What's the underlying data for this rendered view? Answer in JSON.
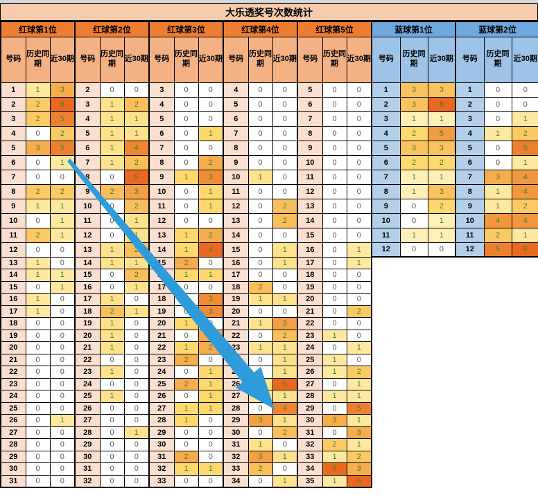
{
  "title": "大乐透奖号次数统计",
  "col_headers": {
    "number": "号码",
    "history": "历史同期",
    "recent30": "近30期"
  },
  "palette": {
    "title_bg": "#F8CBAD",
    "red_group_header_bg": "#ED7D31",
    "red_col_header_bg": "#F4B183",
    "red_number_bg": "#FBDFD0",
    "blue_group_header_bg": "#6FA8DC",
    "blue_col_header_bg": "#9DC3E6",
    "blue_number_bg": "#B4CFEA",
    "zero_text": "#595959",
    "value_text": "#4F7A28",
    "heat_min": "#FFFFFF",
    "heat_max": "#E8691F",
    "arrow_color": "#2E9BDA"
  },
  "groups": [
    {
      "label": "红球第1位",
      "type": "red",
      "start": 1,
      "rows": [
        [
          1,
          3
        ],
        [
          2,
          6
        ],
        [
          2,
          5
        ],
        [
          0,
          2
        ],
        [
          3,
          5
        ],
        [
          0,
          1
        ],
        [
          0,
          0
        ],
        [
          2,
          2
        ],
        [
          1,
          1
        ],
        [
          0,
          1
        ],
        [
          2,
          1
        ],
        [
          0,
          0
        ],
        [
          1,
          0
        ],
        [
          1,
          1
        ],
        [
          0,
          1
        ],
        [
          1,
          0
        ],
        [
          1,
          0
        ],
        [
          0,
          0
        ],
        [
          0,
          0
        ],
        [
          0,
          0
        ],
        [
          0,
          0
        ],
        [
          0,
          0
        ],
        [
          0,
          0
        ],
        [
          0,
          0
        ],
        [
          0,
          0
        ],
        [
          0,
          1
        ],
        [
          0,
          0
        ],
        [
          0,
          0
        ],
        [
          0,
          0
        ],
        [
          0,
          0
        ],
        [
          0,
          0
        ]
      ]
    },
    {
      "label": "红球第2位",
      "type": "red",
      "start": 2,
      "rows": [
        [
          0,
          0
        ],
        [
          1,
          2
        ],
        [
          1,
          1
        ],
        [
          1,
          1
        ],
        [
          1,
          4
        ],
        [
          1,
          2
        ],
        [
          0,
          5
        ],
        [
          2,
          3
        ],
        [
          0,
          2
        ],
        [
          0,
          1
        ],
        [
          0,
          1
        ],
        [
          1,
          2
        ],
        [
          1,
          1
        ],
        [
          0,
          2
        ],
        [
          0,
          1
        ],
        [
          1,
          0
        ],
        [
          2,
          1
        ],
        [
          1,
          0
        ],
        [
          1,
          0
        ],
        [
          1,
          0
        ],
        [
          0,
          0
        ],
        [
          1,
          0
        ],
        [
          0,
          0
        ],
        [
          1,
          0
        ],
        [
          0,
          0
        ],
        [
          0,
          0
        ],
        [
          0,
          1
        ],
        [
          0,
          0
        ],
        [
          0,
          0
        ],
        [
          0,
          0
        ],
        [
          0,
          0
        ]
      ]
    },
    {
      "label": "红球第3位",
      "type": "red",
      "start": 3,
      "rows": [
        [
          0,
          0
        ],
        [
          0,
          0
        ],
        [
          0,
          0
        ],
        [
          0,
          1
        ],
        [
          0,
          0
        ],
        [
          0,
          2
        ],
        [
          1,
          3
        ],
        [
          0,
          1
        ],
        [
          0,
          1
        ],
        [
          0,
          0
        ],
        [
          1,
          2
        ],
        [
          1,
          4
        ],
        [
          2,
          0
        ],
        [
          1,
          1
        ],
        [
          0,
          0
        ],
        [
          0,
          3
        ],
        [
          0,
          3
        ],
        [
          1,
          0
        ],
        [
          0,
          2
        ],
        [
          1,
          2
        ],
        [
          2,
          0
        ],
        [
          0,
          1
        ],
        [
          2,
          1
        ],
        [
          0,
          1
        ],
        [
          1,
          1
        ],
        [
          1,
          0
        ],
        [
          0,
          0
        ],
        [
          0,
          0
        ],
        [
          2,
          0
        ],
        [
          1,
          1
        ],
        [
          0,
          0
        ]
      ]
    },
    {
      "label": "红球第4位",
      "type": "red",
      "start": 4,
      "rows": [
        [
          0,
          0
        ],
        [
          0,
          0
        ],
        [
          0,
          0
        ],
        [
          0,
          0
        ],
        [
          0,
          0
        ],
        [
          0,
          0
        ],
        [
          1,
          0
        ],
        [
          0,
          0
        ],
        [
          0,
          2
        ],
        [
          0,
          2
        ],
        [
          0,
          0
        ],
        [
          0,
          1
        ],
        [
          0,
          1
        ],
        [
          0,
          0
        ],
        [
          2,
          0
        ],
        [
          1,
          1
        ],
        [
          0,
          0
        ],
        [
          1,
          3
        ],
        [
          0,
          2
        ],
        [
          1,
          1
        ],
        [
          0,
          1
        ],
        [
          0,
          1
        ],
        [
          1,
          5
        ],
        [
          1,
          1
        ],
        [
          0,
          4
        ],
        [
          3,
          1
        ],
        [
          0,
          2
        ],
        [
          1,
          0
        ],
        [
          3,
          1
        ],
        [
          2,
          0
        ],
        [
          0,
          1
        ]
      ]
    },
    {
      "label": "红球第5位",
      "type": "red",
      "start": 5,
      "rows": [
        [
          0,
          0
        ],
        [
          0,
          0
        ],
        [
          0,
          0
        ],
        [
          0,
          0
        ],
        [
          0,
          0
        ],
        [
          0,
          0
        ],
        [
          0,
          0
        ],
        [
          0,
          0
        ],
        [
          0,
          0
        ],
        [
          0,
          0
        ],
        [
          0,
          0
        ],
        [
          0,
          1
        ],
        [
          0,
          1
        ],
        [
          0,
          0
        ],
        [
          0,
          0
        ],
        [
          0,
          0
        ],
        [
          0,
          2
        ],
        [
          0,
          0
        ],
        [
          1,
          0
        ],
        [
          0,
          1
        ],
        [
          1,
          0
        ],
        [
          1,
          2
        ],
        [
          0,
          1
        ],
        [
          1,
          1
        ],
        [
          0,
          5
        ],
        [
          3,
          1
        ],
        [
          0,
          3
        ],
        [
          2,
          1
        ],
        [
          1,
          2
        ],
        [
          6,
          3
        ],
        [
          1,
          6
        ]
      ]
    },
    {
      "label": "蓝球第1位",
      "type": "blue",
      "start": 1,
      "rows": [
        [
          3,
          3
        ],
        [
          3,
          8
        ],
        [
          1,
          1
        ],
        [
          2,
          5
        ],
        [
          3,
          3
        ],
        [
          2,
          2
        ],
        [
          1,
          1
        ],
        [
          1,
          3
        ],
        [
          0,
          2
        ],
        [
          0,
          1
        ],
        [
          1,
          1
        ],
        [
          0,
          0
        ]
      ]
    },
    {
      "label": "蓝球第2位",
      "type": "blue",
      "start": 1,
      "rows": [
        [
          0,
          0
        ],
        [
          0,
          0
        ],
        [
          0,
          1
        ],
        [
          1,
          2
        ],
        [
          0,
          5
        ],
        [
          0,
          1
        ],
        [
          3,
          4
        ],
        [
          1,
          4
        ],
        [
          1,
          2
        ],
        [
          4,
          4
        ],
        [
          2,
          1
        ],
        [
          5,
          6
        ]
      ]
    }
  ],
  "layout_note": "spreadsheet heatmap of lottery number frequencies"
}
